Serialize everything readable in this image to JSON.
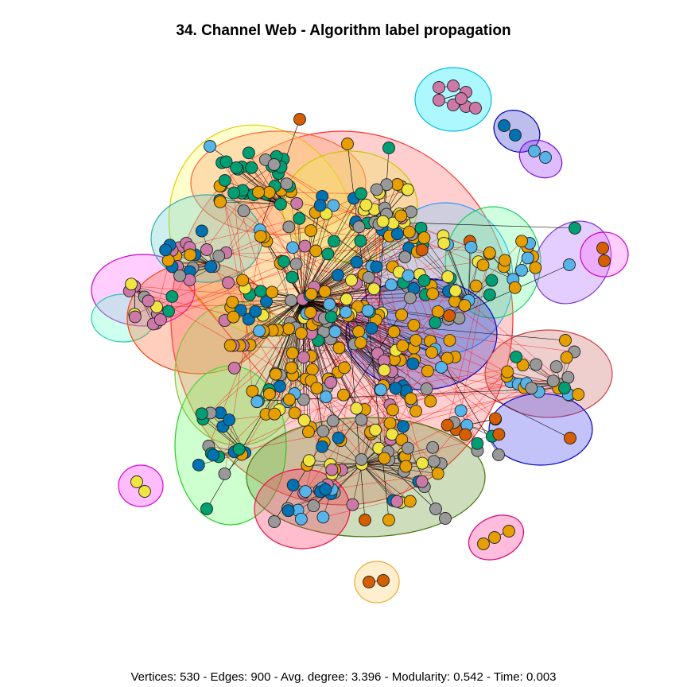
{
  "title": "34. Channel Web - Algorithm label propagation",
  "footer": "Vertices: 530 - Edges: 900 - Avg. degree: 3.396 - Modularity: 0.542 - Time: 0.003",
  "palette": {
    "orange": "#E69F00",
    "yellow": "#F0E442",
    "teal": "#009E73",
    "blue": "#0072B2",
    "sky": "#56B4E9",
    "pink": "#CC79A7",
    "grey": "#999999",
    "vermillion": "#D55E00"
  },
  "inter_community_edge_color": "#FF0000",
  "intra_community_edge_color": "#000000"
}
